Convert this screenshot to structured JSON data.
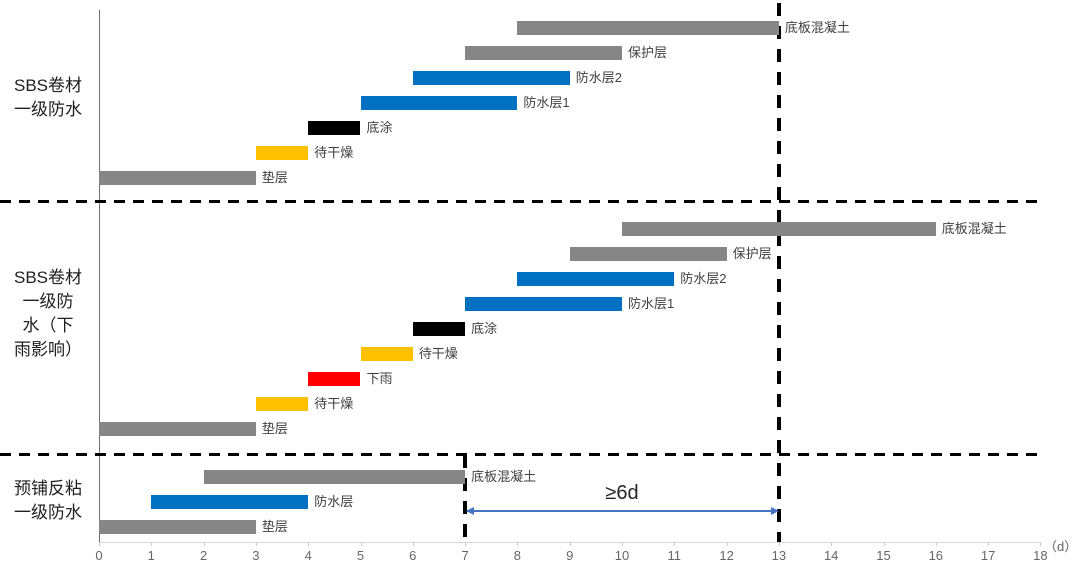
{
  "chart_data": {
    "type": "bar",
    "subtype": "gantt-schedule",
    "x_axis": {
      "unit": "（d）",
      "min": 0,
      "max": 18,
      "tick_labels": [
        "0",
        "1",
        "2",
        "3",
        "4",
        "5",
        "6",
        "7",
        "8",
        "9",
        "10",
        "11",
        "12",
        "13",
        "14",
        "15",
        "16",
        "17",
        "18"
      ]
    },
    "sections": [
      {
        "title": "SBS卷材一级防水",
        "title_lines": [
          "SBS卷材",
          "一级防水"
        ],
        "bars": [
          {
            "label": "底板混凝土",
            "start": 8,
            "end": 13,
            "color": "gray"
          },
          {
            "label": "保护层",
            "start": 7,
            "end": 10,
            "color": "gray"
          },
          {
            "label": "防水层2",
            "start": 6,
            "end": 9,
            "color": "blue"
          },
          {
            "label": "防水层1",
            "start": 5,
            "end": 8,
            "color": "blue"
          },
          {
            "label": "底涂",
            "start": 4,
            "end": 5,
            "color": "black"
          },
          {
            "label": "待干燥",
            "start": 3,
            "end": 4,
            "color": "yellow"
          },
          {
            "label": "垫层",
            "start": 0,
            "end": 3,
            "color": "gray"
          }
        ]
      },
      {
        "title": "SBS卷材一级防水（下雨影响）",
        "title_lines": [
          "SBS卷材",
          "一级防",
          "水（下",
          "雨影响）"
        ],
        "bars": [
          {
            "label": "底板混凝土",
            "start": 10,
            "end": 16,
            "color": "gray"
          },
          {
            "label": "保护层",
            "start": 9,
            "end": 12,
            "color": "gray"
          },
          {
            "label": "防水层2",
            "start": 8,
            "end": 11,
            "color": "blue"
          },
          {
            "label": "防水层1",
            "start": 7,
            "end": 10,
            "color": "blue"
          },
          {
            "label": "底涂",
            "start": 6,
            "end": 7,
            "color": "black"
          },
          {
            "label": "待干燥",
            "start": 5,
            "end": 6,
            "color": "yellow"
          },
          {
            "label": "下雨",
            "start": 4,
            "end": 5,
            "color": "red"
          },
          {
            "label": "待干燥",
            "start": 3,
            "end": 4,
            "color": "yellow"
          },
          {
            "label": "垫层",
            "start": 0,
            "end": 3,
            "color": "gray"
          }
        ]
      },
      {
        "title": "预铺反粘一级防水",
        "title_lines": [
          "预铺反粘",
          "一级防水"
        ],
        "bars": [
          {
            "label": "底板混凝土",
            "start": 2,
            "end": 7,
            "color": "gray"
          },
          {
            "label": "防水层",
            "start": 1,
            "end": 4,
            "color": "blue"
          },
          {
            "label": "垫层",
            "start": 0,
            "end": 3,
            "color": "gray"
          }
        ]
      }
    ],
    "reference_lines": [
      {
        "day": 13,
        "extent": "full-height"
      },
      {
        "day": 7,
        "extent": "bottom-section"
      }
    ],
    "annotation": {
      "label": "≥6d",
      "from_day": 7,
      "to_day": 13
    }
  },
  "colors": {
    "gray": "#868686",
    "blue": "#0070C0",
    "black": "#000000",
    "yellow": "#FFC000",
    "red": "#FF0000",
    "dashed_line": "#000000",
    "arrow": "#4472C4",
    "bar_label_text": "#3F3F3F",
    "title_text": "#1F1F1F",
    "tick_text": "#666666"
  }
}
